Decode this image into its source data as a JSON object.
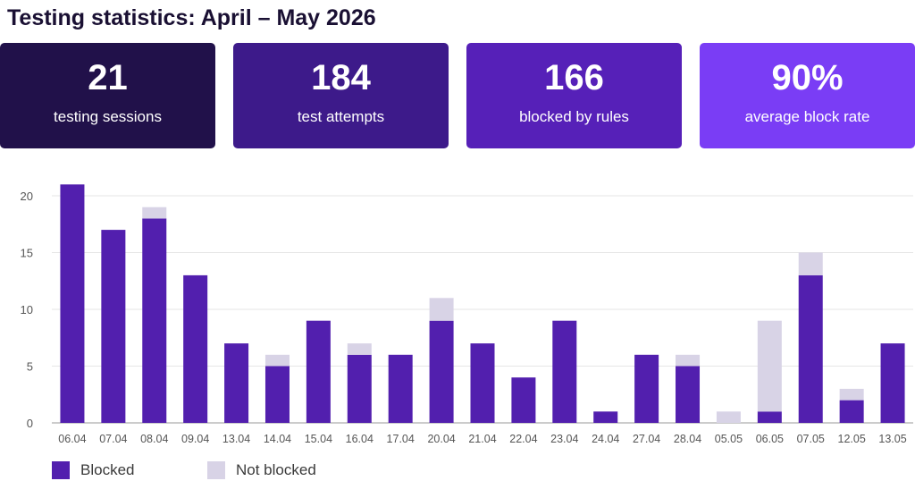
{
  "header": {
    "title": "Testing statistics: April – May 2026"
  },
  "cards": [
    {
      "value": "21",
      "label": "testing sessions",
      "color": "#21114a"
    },
    {
      "value": "184",
      "label": "test attempts",
      "color": "#3d1a8a"
    },
    {
      "value": "166",
      "label": "blocked by rules",
      "color": "#5620b8"
    },
    {
      "value": "90%",
      "label": "average block rate",
      "color": "#7a3df5"
    }
  ],
  "legend": {
    "blocked_label": "Blocked",
    "not_blocked_label": "Not blocked"
  },
  "chart_data": {
    "type": "bar",
    "stacked": true,
    "categories": [
      "06.04",
      "07.04",
      "08.04",
      "09.04",
      "13.04",
      "14.04",
      "15.04",
      "16.04",
      "17.04",
      "20.04",
      "21.04",
      "22.04",
      "23.04",
      "24.04",
      "27.04",
      "28.04",
      "05.05",
      "06.05",
      "07.05",
      "12.05",
      "13.05"
    ],
    "series": [
      {
        "name": "Blocked",
        "color": "#521fae",
        "values": [
          21,
          17,
          18,
          13,
          7,
          5,
          9,
          6,
          6,
          9,
          7,
          4,
          9,
          1,
          6,
          5,
          0,
          1,
          13,
          2,
          7
        ]
      },
      {
        "name": "Not blocked",
        "color": "#d8d3e6",
        "values": [
          0,
          0,
          1,
          0,
          0,
          1,
          0,
          1,
          0,
          2,
          0,
          0,
          0,
          0,
          0,
          1,
          1,
          8,
          2,
          1,
          0
        ]
      }
    ],
    "y_ticks": [
      0,
      5,
      10,
      15,
      20
    ],
    "ylim": [
      0,
      21
    ],
    "grid": true,
    "legend_position": "bottom-left"
  }
}
